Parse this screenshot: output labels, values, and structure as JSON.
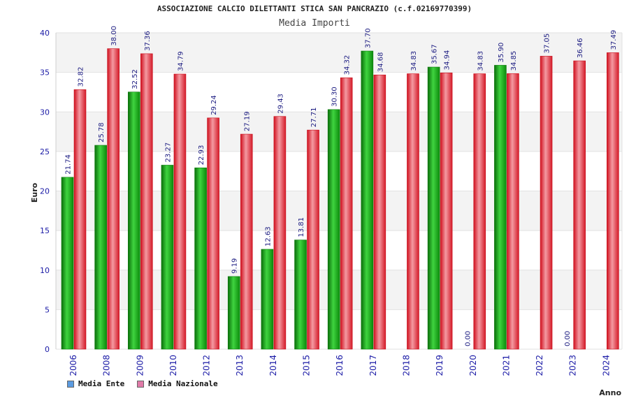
{
  "chart_data": {
    "type": "bar",
    "title": "ASSOCIAZIONE CALCIO DILETTANTI STICA SAN PANCRAZIO (c.f.02169770399)",
    "subtitle": "Media Importi",
    "xlabel": "Anno",
    "ylabel": "Euro",
    "ylim": [
      0,
      40
    ],
    "yticks": [
      0,
      5,
      10,
      15,
      20,
      25,
      30,
      35,
      40
    ],
    "grid": true,
    "legend_position": "bottom-left",
    "categories": [
      "2006",
      "2008",
      "2009",
      "2010",
      "2012",
      "2013",
      "2014",
      "2015",
      "2016",
      "2017",
      "2018",
      "2019",
      "2020",
      "2021",
      "2022",
      "2023",
      "2024"
    ],
    "series": [
      {
        "name": "Media Ente",
        "bar_color": "#1fb01f",
        "legend_color": "#5b9be0",
        "values": [
          21.74,
          25.78,
          32.52,
          23.27,
          22.93,
          9.19,
          12.63,
          13.81,
          30.3,
          37.7,
          null,
          35.67,
          0.0,
          35.9,
          null,
          0.0,
          null
        ],
        "labels": [
          "21.74",
          "25.78",
          "32.52",
          "23.27",
          "22.93",
          "9.19",
          "12.63",
          "13.81",
          "30.30",
          "37.70",
          "",
          "35.67",
          "0.00",
          "35.90",
          "",
          "0.00",
          ""
        ]
      },
      {
        "name": "Media Nazionale",
        "bar_color": "#e8303a",
        "legend_color": "#e07aa8",
        "values": [
          32.82,
          38.0,
          37.36,
          34.79,
          29.24,
          27.19,
          29.43,
          27.71,
          34.32,
          34.68,
          34.83,
          34.94,
          34.83,
          34.85,
          37.05,
          36.46,
          37.49
        ],
        "labels": [
          "32.82",
          "38.00",
          "37.36",
          "34.79",
          "29.24",
          "27.19",
          "29.43",
          "27.71",
          "34.32",
          "34.68",
          "34.83",
          "34.94",
          "34.83",
          "34.85",
          "37.05",
          "36.46",
          "37.49"
        ]
      }
    ]
  }
}
